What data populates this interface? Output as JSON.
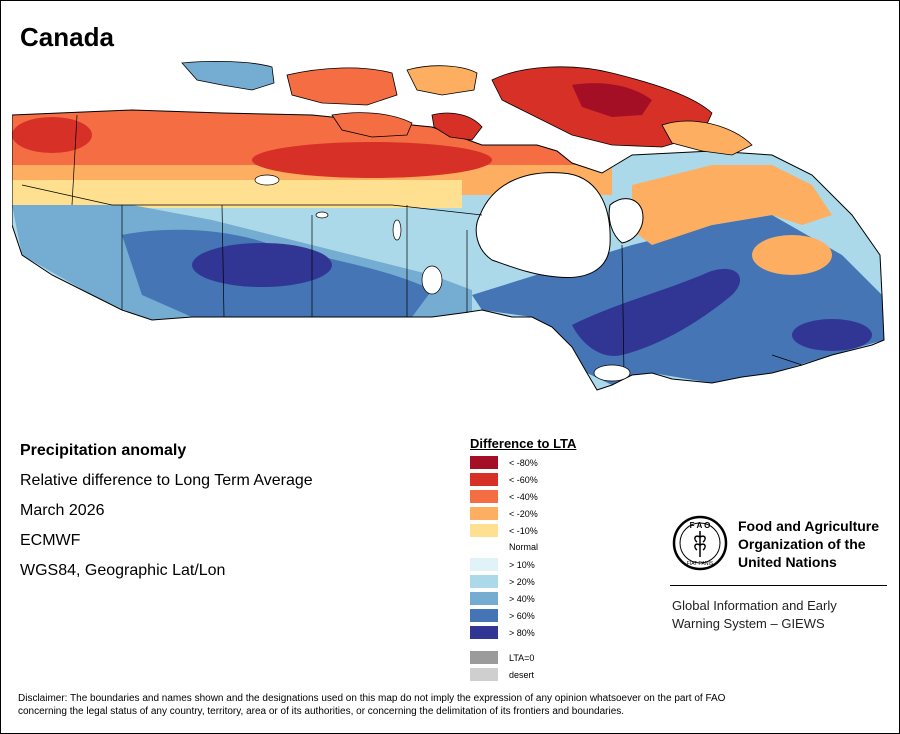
{
  "title": "Canada",
  "info": {
    "line1": "Precipitation anomaly",
    "line2": "Relative difference to Long Term Average",
    "line3": "March 2026",
    "line4": "ECMWF",
    "line5": "WGS84, Geographic Lat/Lon"
  },
  "legend": {
    "title": "Difference to LTA",
    "dry": [
      {
        "label": "< -80%",
        "color": "#a50f26"
      },
      {
        "label": "< -60%",
        "color": "#d73027"
      },
      {
        "label": "< -40%",
        "color": "#f46d43"
      },
      {
        "label": "< -20%",
        "color": "#fdae61"
      },
      {
        "label": "< -10%",
        "color": "#fee090"
      }
    ],
    "normal": "Normal",
    "wet": [
      {
        "label": "> 10%",
        "color": "#e0f3f8"
      },
      {
        "label": "> 20%",
        "color": "#abd9e9"
      },
      {
        "label": "> 40%",
        "color": "#74add1"
      },
      {
        "label": "> 60%",
        "color": "#4575b4"
      },
      {
        "label": "> 80%",
        "color": "#313695"
      }
    ],
    "extra": [
      {
        "label": "LTA=0",
        "color": "#9b9b9b"
      },
      {
        "label": "desert",
        "color": "#cfcfcf"
      }
    ]
  },
  "fao": {
    "name1": "Food and Agriculture",
    "name2": "Organization of the",
    "name3": "United Nations",
    "logo_top": "F A O",
    "logo_bottom": "FIAT PANIS",
    "giews1": "Global Information and Early",
    "giews2": "Warning System – GIEWS"
  },
  "disclaimer1": "Disclaimer: The boundaries and names shown and the designations used on this map do not imply the expression of any opinion whatsoever on the part of FAO",
  "disclaimer2": "concerning the legal status of any country, territory, area or of its authorities, or concerning the delimitation of its frontiers and boundaries."
}
